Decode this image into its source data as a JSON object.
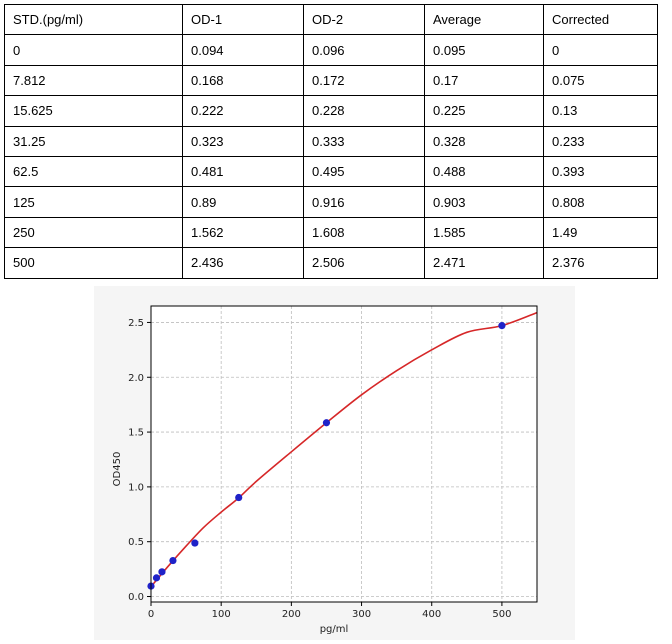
{
  "table": {
    "headers": [
      "STD.(pg/ml)",
      "OD-1",
      "OD-2",
      "Average",
      "Corrected"
    ],
    "rows": [
      [
        "0",
        "0.094",
        "0.096",
        "0.095",
        "0"
      ],
      [
        "7.812",
        "0.168",
        "0.172",
        "0.17",
        "0.075"
      ],
      [
        "15.625",
        "0.222",
        "0.228",
        "0.225",
        "0.13"
      ],
      [
        "31.25",
        "0.323",
        "0.333",
        "0.328",
        "0.233"
      ],
      [
        "62.5",
        "0.481",
        "0.495",
        "0.488",
        "0.393"
      ],
      [
        "125",
        "0.89",
        "0.916",
        "0.903",
        "0.808"
      ],
      [
        "250",
        "1.562",
        "1.608",
        "1.585",
        "1.49"
      ],
      [
        "500",
        "2.436",
        "2.506",
        "2.471",
        "2.376"
      ]
    ]
  },
  "chart_data": {
    "type": "scatter",
    "xlabel": "pg/ml",
    "ylabel": "OD450",
    "xlim": [
      0,
      550
    ],
    "ylim": [
      -0.05,
      2.65
    ],
    "x_ticks": [
      0,
      100,
      200,
      300,
      400,
      500
    ],
    "x_tick_labels": [
      "0",
      "100",
      "200",
      "300",
      "400",
      "500"
    ],
    "y_ticks": [
      0.0,
      0.5,
      1.0,
      1.5,
      2.0,
      2.5
    ],
    "y_tick_labels": [
      "0.0",
      "0.5",
      "1.0",
      "1.5",
      "2.0",
      "2.5"
    ],
    "grid": true,
    "series": [
      {
        "kind": "points",
        "color": "#1f22c8",
        "x": [
          0,
          7.812,
          15.625,
          31.25,
          62.5,
          125,
          250,
          500
        ],
        "y": [
          0.095,
          0.17,
          0.225,
          0.328,
          0.488,
          0.903,
          1.585,
          2.471
        ]
      },
      {
        "kind": "fit-curve",
        "color": "#d62728",
        "x": [
          0,
          25,
          50,
          75,
          100,
          125,
          150,
          200,
          250,
          300,
          350,
          400,
          450,
          500,
          550
        ],
        "y": [
          0.09,
          0.28,
          0.46,
          0.63,
          0.77,
          0.9,
          1.05,
          1.32,
          1.585,
          1.84,
          2.06,
          2.25,
          2.41,
          2.471,
          2.59
        ]
      }
    ]
  }
}
